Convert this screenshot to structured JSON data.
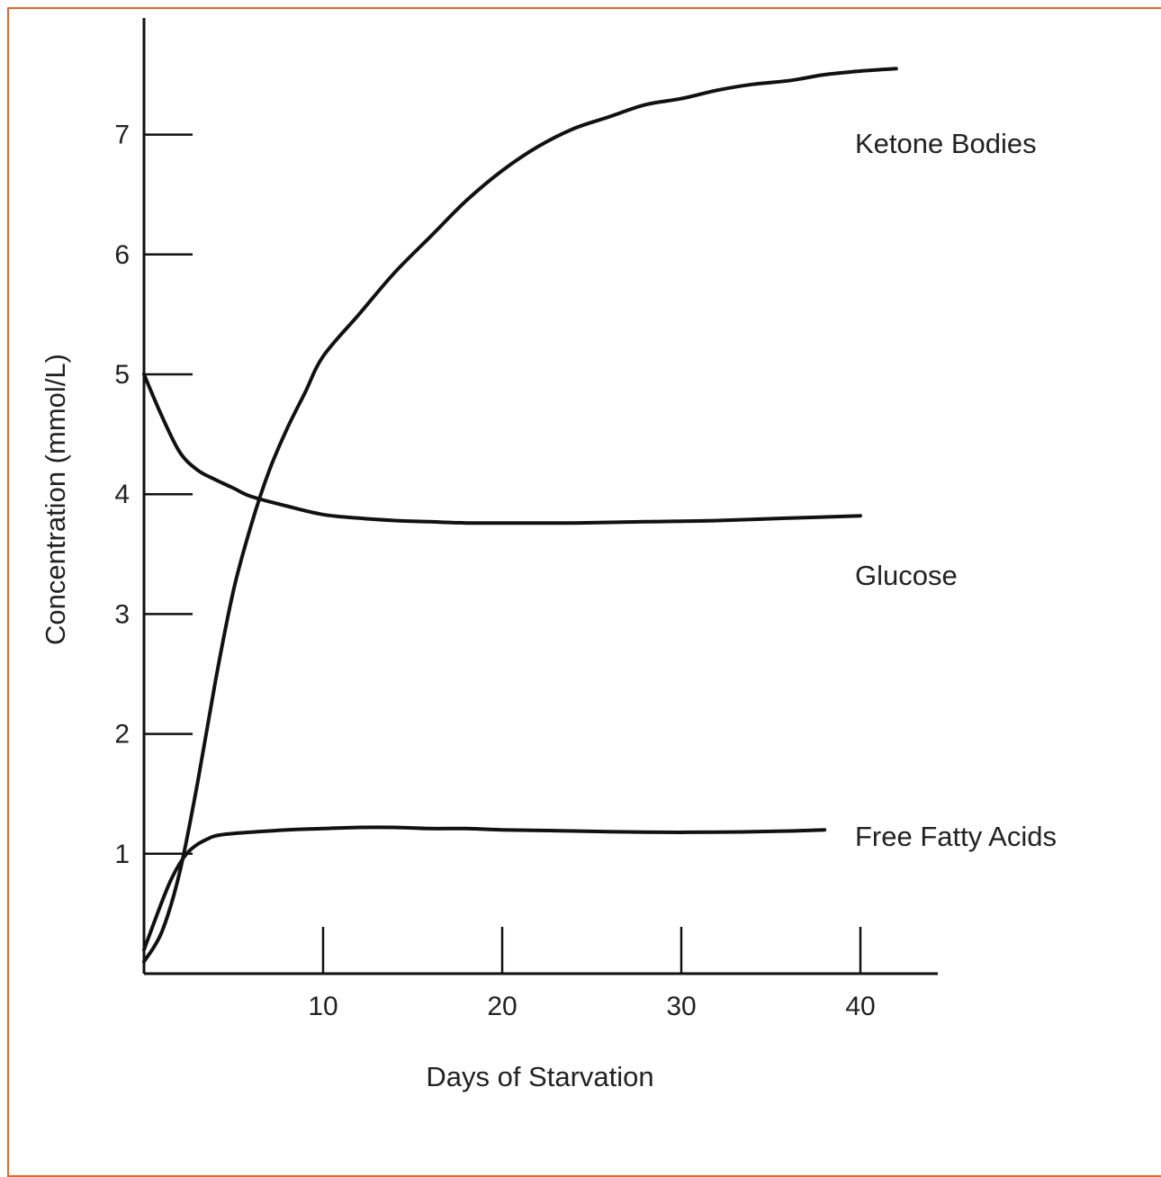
{
  "chart_data": {
    "type": "line",
    "title": "",
    "xlabel": "Days of Starvation",
    "ylabel": "Concentration (mmol/L)",
    "xlim": [
      0,
      44
    ],
    "ylim": [
      0,
      7.9
    ],
    "x_ticks": [
      "10",
      "20",
      "30",
      "40"
    ],
    "y_ticks": [
      "1",
      "2",
      "3",
      "4",
      "5",
      "6",
      "7"
    ],
    "grid": false,
    "legend": "labels at right end of lines",
    "series": [
      {
        "name": "Ketone Bodies",
        "x": [
          0,
          1,
          2,
          3,
          4,
          5,
          6,
          7,
          8,
          9,
          10,
          12,
          14,
          16,
          18,
          20,
          22,
          24,
          26,
          28,
          30,
          32,
          34,
          36,
          38,
          40,
          42
        ],
        "y": [
          0.1,
          0.35,
          0.85,
          1.6,
          2.45,
          3.2,
          3.75,
          4.2,
          4.55,
          4.85,
          5.15,
          5.5,
          5.85,
          6.15,
          6.45,
          6.7,
          6.9,
          7.05,
          7.15,
          7.25,
          7.3,
          7.37,
          7.42,
          7.45,
          7.5,
          7.53,
          7.55
        ]
      },
      {
        "name": "Glucose",
        "x": [
          0,
          1,
          2,
          3,
          4,
          5,
          6,
          8,
          10,
          12,
          14,
          16,
          18,
          20,
          24,
          28,
          32,
          36,
          40
        ],
        "y": [
          5.0,
          4.65,
          4.35,
          4.2,
          4.12,
          4.05,
          3.98,
          3.9,
          3.83,
          3.8,
          3.78,
          3.77,
          3.76,
          3.76,
          3.76,
          3.77,
          3.78,
          3.8,
          3.82
        ]
      },
      {
        "name": "Free Fatty Acids",
        "x": [
          0,
          0.5,
          1,
          1.5,
          2,
          2.5,
          3,
          3.5,
          4,
          5,
          6,
          8,
          10,
          12,
          14,
          16,
          18,
          20,
          24,
          28,
          32,
          36,
          38
        ],
        "y": [
          0.2,
          0.4,
          0.6,
          0.78,
          0.92,
          1.02,
          1.08,
          1.12,
          1.15,
          1.17,
          1.18,
          1.2,
          1.21,
          1.22,
          1.22,
          1.21,
          1.21,
          1.2,
          1.19,
          1.18,
          1.18,
          1.19,
          1.2
        ]
      }
    ]
  }
}
